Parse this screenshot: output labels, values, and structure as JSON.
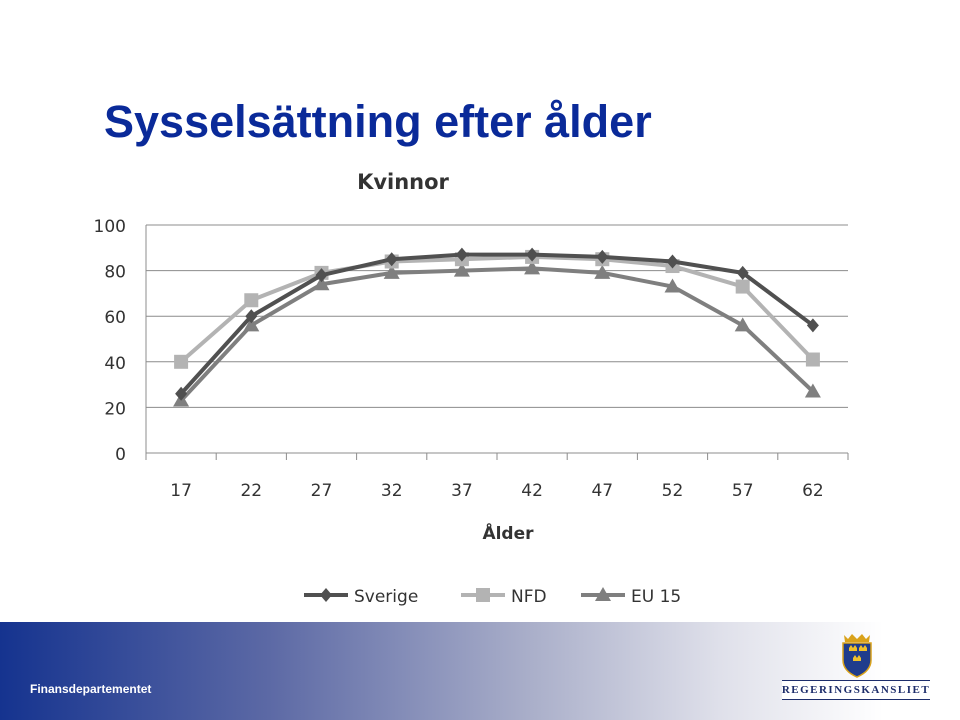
{
  "slide": {
    "title": "Sysselsättning efter ålder",
    "footer_text": "Finansdepartementet",
    "brand_text": "REGERINGSKANSLIET",
    "logo_icon": "three-crowns-crest-icon"
  },
  "chart_data": {
    "type": "line",
    "title": "Kvinnor",
    "xlabel": "Ålder",
    "ylabel": "",
    "x": [
      17,
      22,
      27,
      32,
      37,
      42,
      47,
      52,
      57,
      62
    ],
    "ylim": [
      0,
      100
    ],
    "yticks": [
      0,
      20,
      40,
      60,
      80,
      100
    ],
    "grid": true,
    "legend_position": "bottom",
    "series": [
      {
        "name": "Sverige",
        "marker": "diamond",
        "color": "#505050",
        "values": [
          26,
          60,
          78,
          85,
          87,
          87,
          86,
          84,
          79,
          56
        ]
      },
      {
        "name": "NFD",
        "marker": "square",
        "color": "#b3b3b3",
        "values": [
          40,
          67,
          79,
          84,
          85,
          86,
          85,
          82,
          73,
          41
        ]
      },
      {
        "name": "EU 15",
        "marker": "triangle",
        "color": "#7f7f7f",
        "values": [
          23,
          56,
          74,
          79,
          80,
          81,
          79,
          73,
          56,
          27
        ]
      }
    ]
  }
}
